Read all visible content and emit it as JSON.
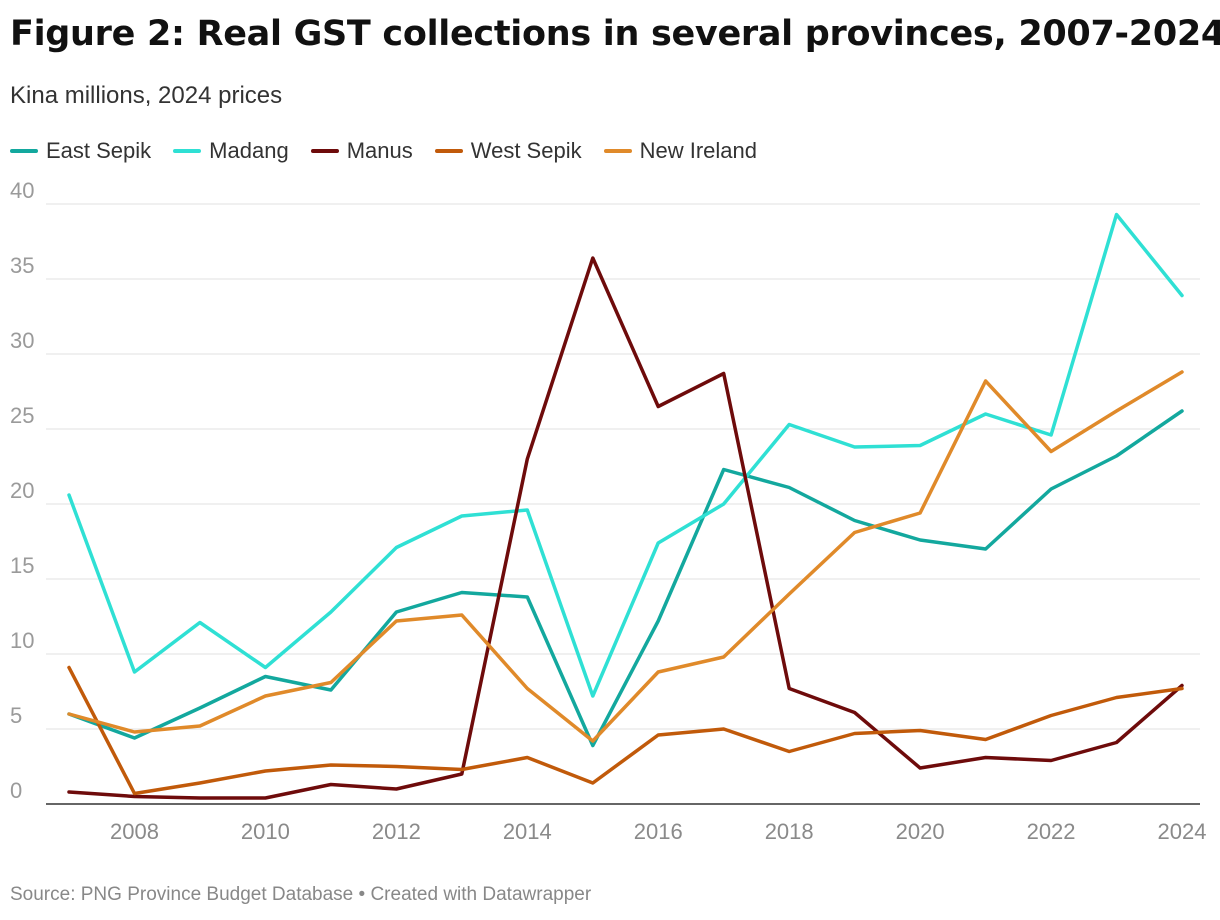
{
  "header": {
    "title": "Figure 2: Real GST collections in several provinces, 2007-2024",
    "subtitle": "Kina millions, 2024 prices"
  },
  "footer": {
    "source": "Source: PNG Province Budget Database • Created with Datawrapper"
  },
  "chart_data": {
    "type": "line",
    "title": "Figure 2: Real GST collections in several provinces, 2007-2024",
    "subtitle": "Kina millions, 2024 prices",
    "xlabel": "",
    "ylabel": "",
    "x": [
      2007,
      2008,
      2009,
      2010,
      2011,
      2012,
      2013,
      2014,
      2015,
      2016,
      2017,
      2018,
      2019,
      2020,
      2021,
      2022,
      2023,
      2024
    ],
    "xticks": [
      2008,
      2010,
      2012,
      2014,
      2016,
      2018,
      2020,
      2022,
      2024
    ],
    "yticks": [
      0,
      5,
      10,
      15,
      20,
      25,
      30,
      35,
      40
    ],
    "xlim": [
      2007,
      2024
    ],
    "ylim": [
      0,
      40
    ],
    "grid": true,
    "legend_position": "top-left",
    "series": [
      {
        "name": "East Sepik",
        "color": "#13a89e",
        "values": [
          6.0,
          4.4,
          6.4,
          8.5,
          7.6,
          12.8,
          14.1,
          13.8,
          3.9,
          12.2,
          22.3,
          21.1,
          18.9,
          17.6,
          17.0,
          21.0,
          23.2,
          26.2
        ]
      },
      {
        "name": "Madang",
        "color": "#2fe0d4",
        "values": [
          20.6,
          8.8,
          12.1,
          9.1,
          12.8,
          17.1,
          19.2,
          19.6,
          7.2,
          17.4,
          20.0,
          25.3,
          23.8,
          23.9,
          26.0,
          24.6,
          39.3,
          33.9
        ]
      },
      {
        "name": "Manus",
        "color": "#6e0b0b",
        "values": [
          0.8,
          0.5,
          0.4,
          0.4,
          1.3,
          1.0,
          2.0,
          23.0,
          36.4,
          26.5,
          28.7,
          7.7,
          6.1,
          2.4,
          3.1,
          2.9,
          4.1,
          7.9
        ]
      },
      {
        "name": "West Sepik",
        "color": "#c15a0a",
        "values": [
          9.1,
          0.7,
          1.4,
          2.2,
          2.6,
          2.5,
          2.3,
          3.1,
          1.4,
          4.6,
          5.0,
          3.5,
          4.7,
          4.9,
          4.3,
          5.9,
          7.1,
          7.7
        ]
      },
      {
        "name": "New Ireland",
        "color": "#e08a2a",
        "values": [
          6.0,
          4.8,
          5.2,
          7.2,
          8.1,
          12.2,
          12.6,
          7.7,
          4.2,
          8.8,
          9.8,
          14.0,
          18.1,
          19.4,
          28.2,
          23.5,
          26.2,
          28.8
        ]
      }
    ]
  }
}
